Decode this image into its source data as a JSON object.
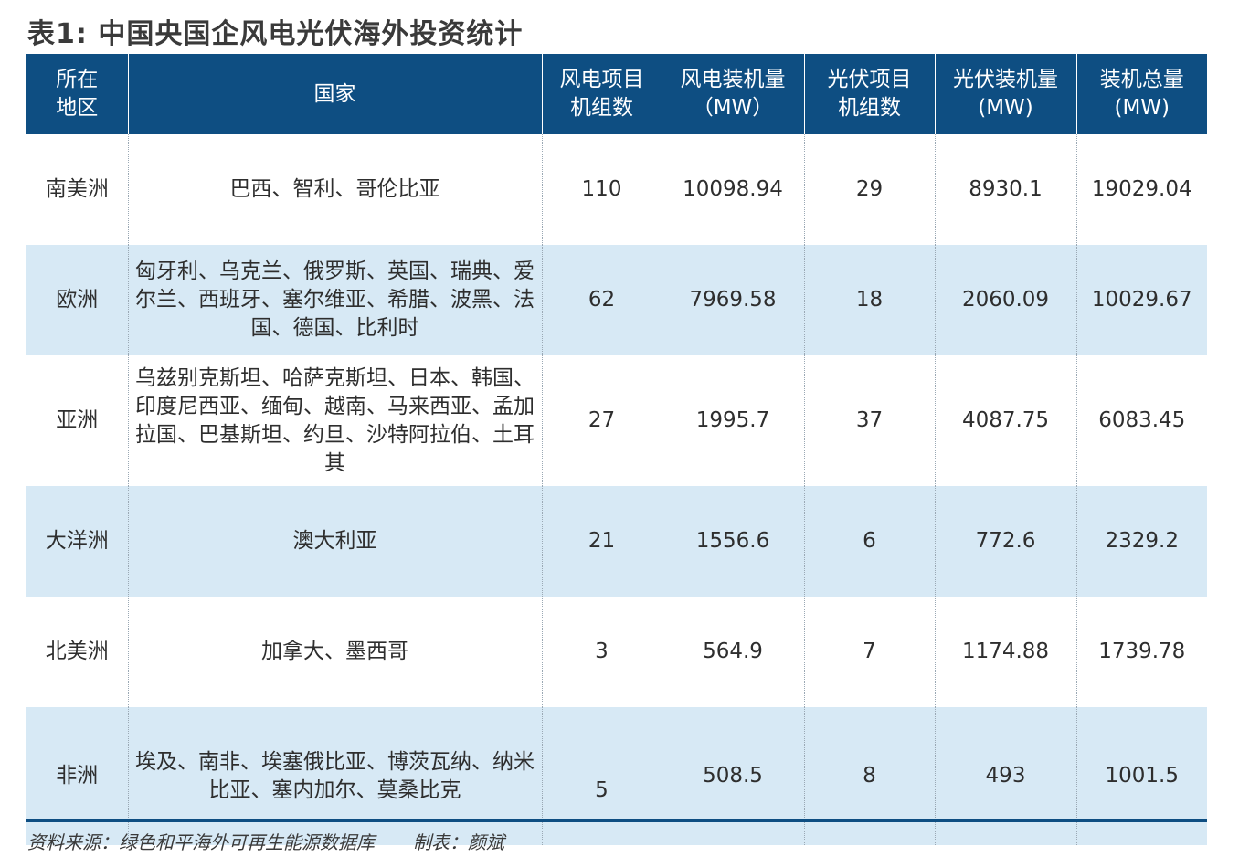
{
  "title": "表1: 中国央国企风电光伏海外投资统计",
  "table": {
    "headers": [
      [
        "所在",
        "地区"
      ],
      [
        "国家"
      ],
      [
        "风电项目",
        "机组数"
      ],
      [
        "风电装机量",
        "（MW）"
      ],
      [
        "光伏项目",
        "机组数"
      ],
      [
        "光伏装机量",
        "(MW)"
      ],
      [
        "装机总量",
        "(MW)"
      ]
    ],
    "rows": [
      {
        "region": "南美洲",
        "countries": "巴西、智利、哥伦比亚",
        "wind_units": "110",
        "wind_capacity": "10098.94",
        "pv_units": "29",
        "pv_capacity": "8930.1",
        "total_capacity": "19029.04"
      },
      {
        "region": "欧洲",
        "countries": "匈牙利、乌克兰、俄罗斯、英国、瑞典、爱尔兰、西班牙、塞尔维亚、希腊、波黑、法国、德国、比利时",
        "wind_units": "62",
        "wind_capacity": "7969.58",
        "pv_units": "18",
        "pv_capacity": "2060.09",
        "total_capacity": "10029.67"
      },
      {
        "region": "亚洲",
        "countries": "乌兹别克斯坦、哈萨克斯坦、日本、韩国、印度尼西亚、缅甸、越南、马来西亚、孟加拉国、巴基斯坦、约旦、沙特阿拉伯、土耳其",
        "wind_units": "27",
        "wind_capacity": "1995.7",
        "pv_units": "37",
        "pv_capacity": "4087.75",
        "total_capacity": "6083.45"
      },
      {
        "region": "大洋洲",
        "countries": "澳大利亚",
        "wind_units": "21",
        "wind_capacity": "1556.6",
        "pv_units": "6",
        "pv_capacity": "772.6",
        "total_capacity": "2329.2"
      },
      {
        "region": "北美洲",
        "countries": "加拿大、墨西哥",
        "wind_units": "3",
        "wind_capacity": "564.9",
        "pv_units": "7",
        "pv_capacity": "1174.88",
        "total_capacity": "1739.78"
      },
      {
        "region": "非洲",
        "countries": "埃及、南非、埃塞俄比亚、博茨瓦纳、纳米比亚、塞内加尔、莫桑比克",
        "wind_units": "5",
        "wind_capacity": "508.5",
        "pv_units": "8",
        "pv_capacity": "493",
        "total_capacity": "1001.5"
      }
    ]
  },
  "footer": {
    "source": "资料来源：绿色和平海外可再生能源数据库",
    "author": "制表：颜斌"
  },
  "colors": {
    "header_bg": "#0e4e82",
    "band_bg": "#d7e9f5"
  }
}
